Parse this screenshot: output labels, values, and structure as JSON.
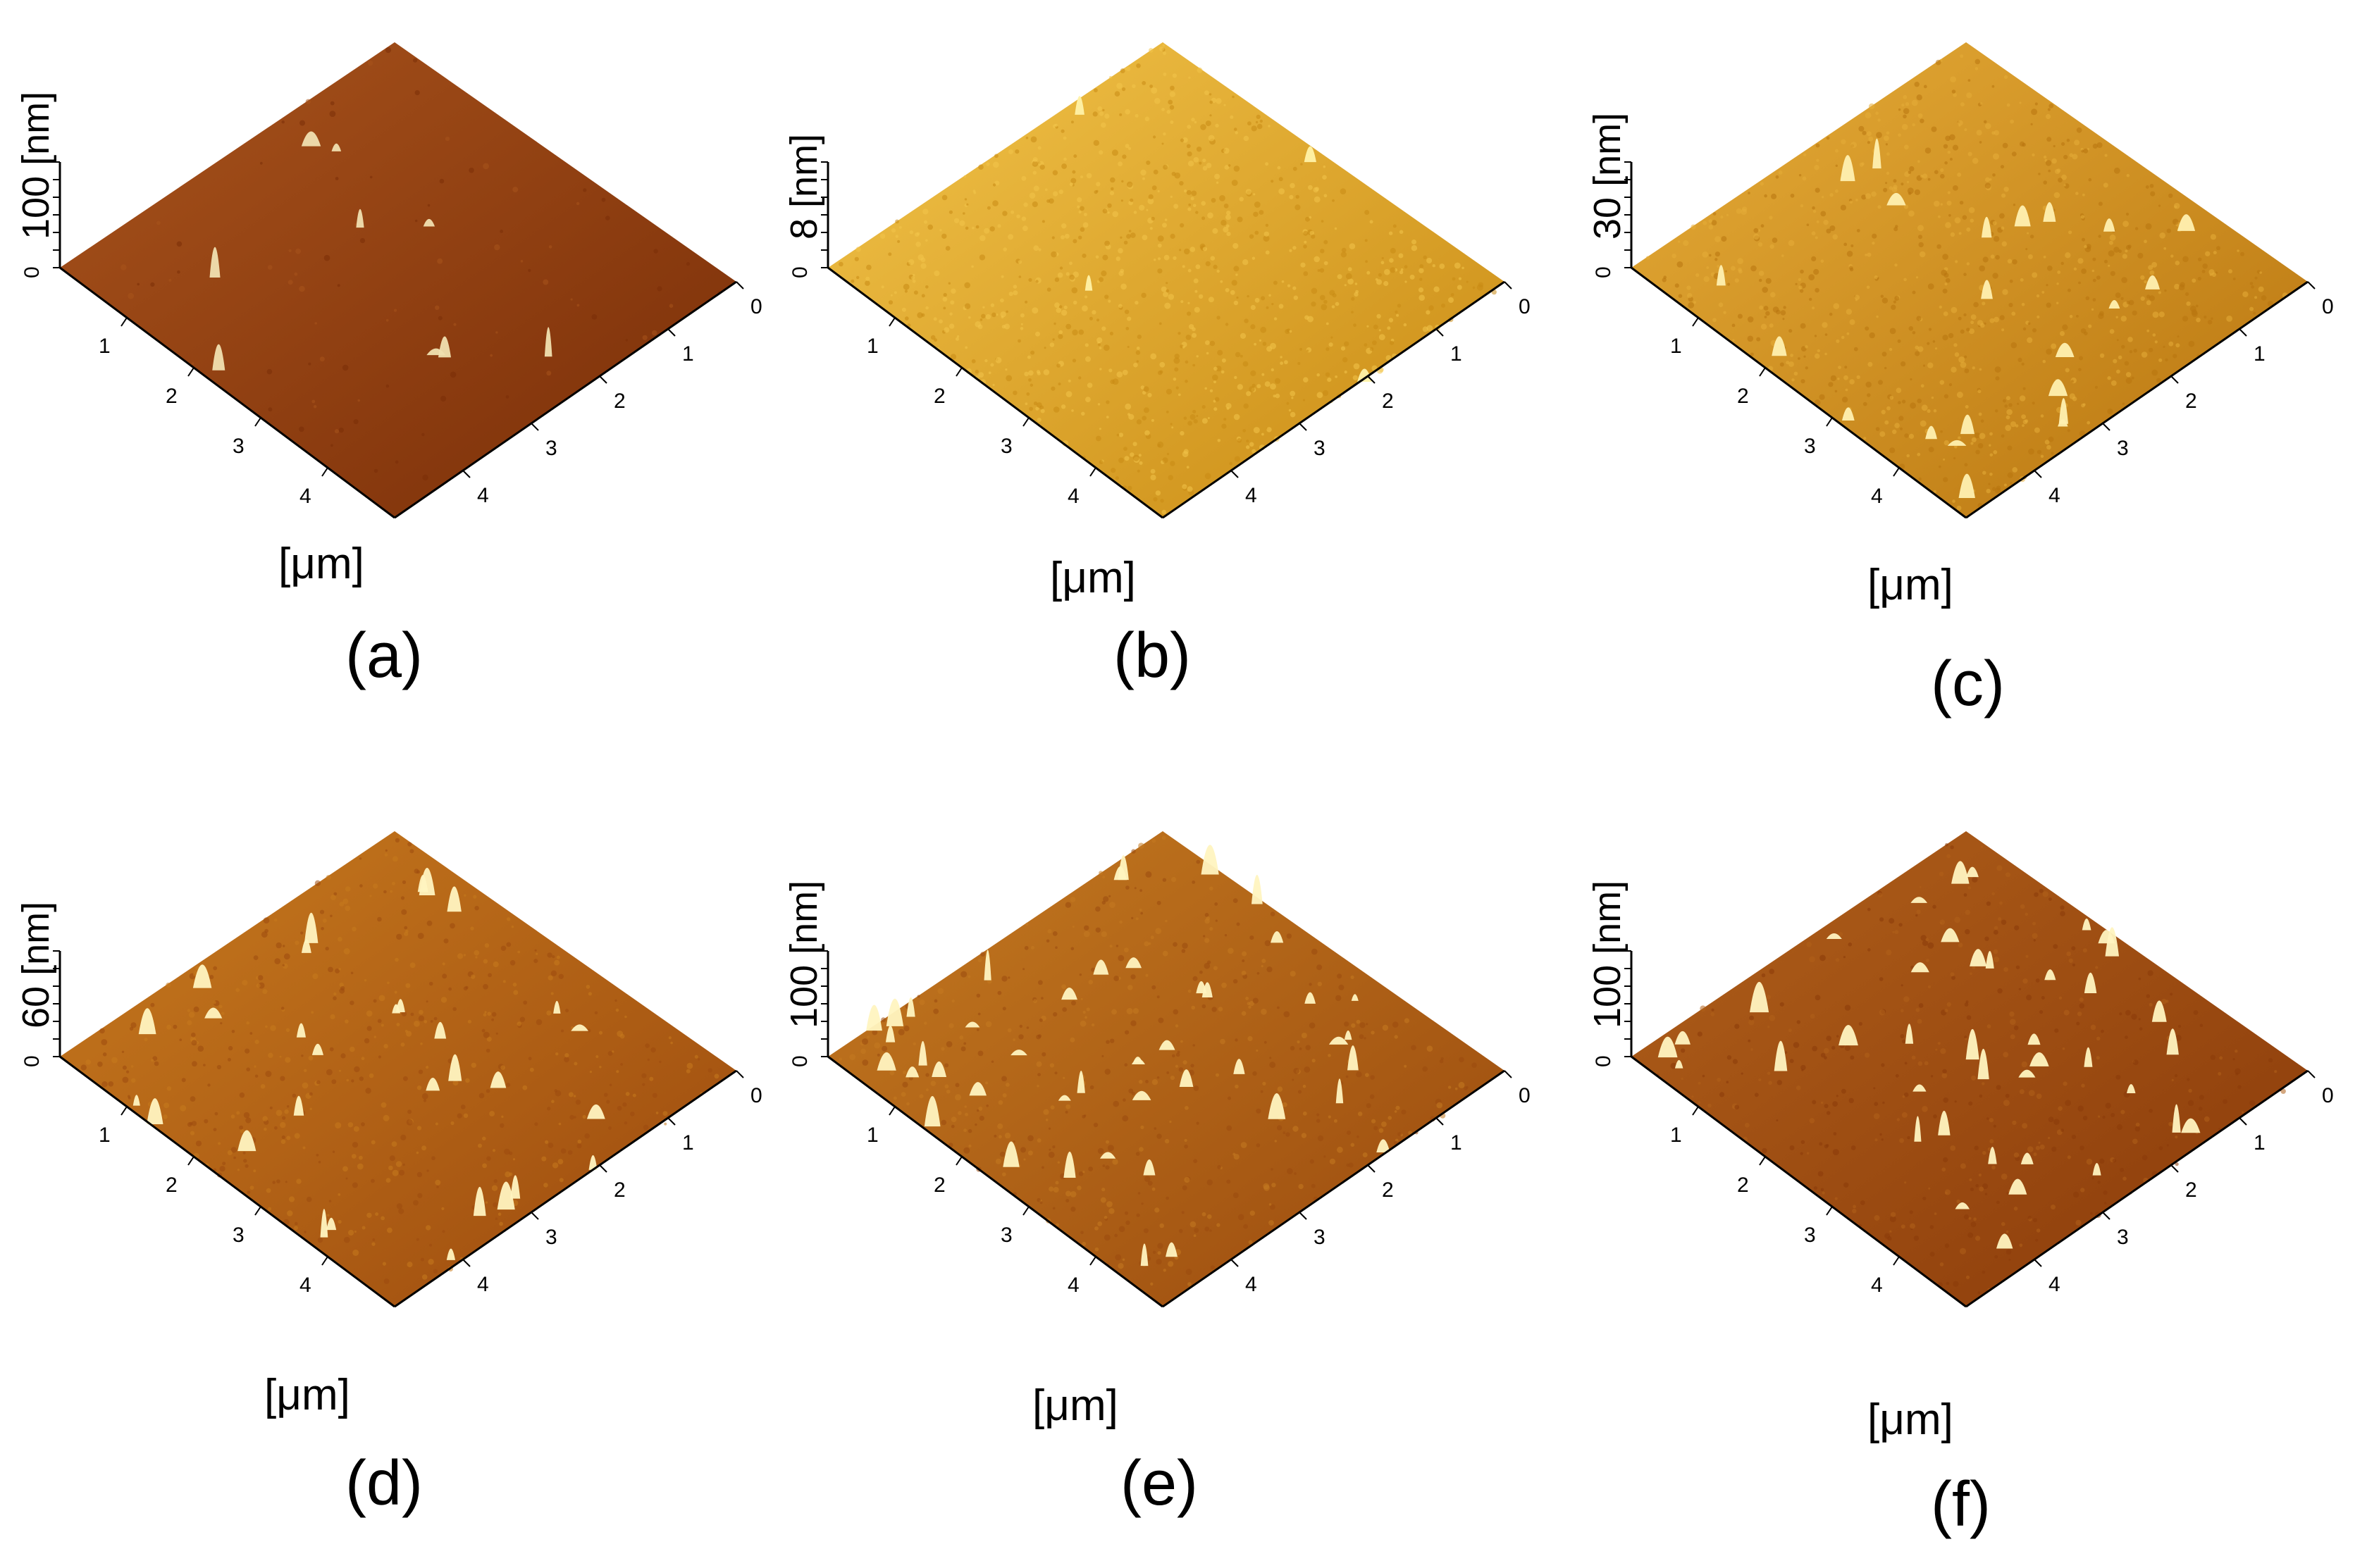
{
  "panels": [
    {
      "id": "a",
      "caption": "(a)",
      "z_top": "100 [nm]",
      "z_zero": "0",
      "unit": "[μm]",
      "ticks_left": [
        "1",
        "2",
        "3",
        "4"
      ],
      "ticks_right": [
        "0",
        "1",
        "2",
        "3",
        "4"
      ],
      "colors": {
        "surface": "#7a2e08",
        "light": "#a8531c",
        "edge": "#f0e0b0"
      },
      "peaks": 9,
      "grain": 0.1
    },
    {
      "id": "b",
      "caption": "(b)",
      "z_top": "8 [nm]",
      "z_zero": "0",
      "unit": "[μm]",
      "ticks_left": [
        "1",
        "2",
        "3",
        "4"
      ],
      "ticks_right": [
        "0",
        "1",
        "2",
        "3",
        "4"
      ],
      "colors": {
        "surface": "#c98a14",
        "light": "#f2c44a",
        "edge": "#fff2a8"
      },
      "peaks": 4,
      "grain": 1.0
    },
    {
      "id": "c",
      "caption": "(c)",
      "z_top": "30 [nm]",
      "z_zero": "0",
      "unit": "[μm]",
      "ticks_left": [
        "1",
        "2",
        "3",
        "4"
      ],
      "ticks_right": [
        "0",
        "1",
        "2",
        "3",
        "4"
      ],
      "colors": {
        "surface": "#b8740f",
        "light": "#e6ad38",
        "edge": "#fff0b0"
      },
      "peaks": 22,
      "grain": 0.9
    },
    {
      "id": "d",
      "caption": "(d)",
      "z_top": "60 [nm]",
      "z_zero": "0",
      "unit": "[μm]",
      "ticks_left": [
        "1",
        "2",
        "3",
        "4"
      ],
      "ticks_right": [
        "0",
        "1",
        "2",
        "3",
        "4"
      ],
      "colors": {
        "surface": "#9c4a0e",
        "light": "#c77a1e",
        "edge": "#fff4c0"
      },
      "peaks": 30,
      "grain": 0.6
    },
    {
      "id": "e",
      "caption": "(e)",
      "z_top": "100 [nm]",
      "z_zero": "0",
      "unit": "[μm]",
      "ticks_left": [
        "1",
        "2",
        "3",
        "4"
      ],
      "ticks_right": [
        "0",
        "1",
        "2",
        "3",
        "4"
      ],
      "colors": {
        "surface": "#9a4a0e",
        "light": "#c47a20",
        "edge": "#fff4c0"
      },
      "peaks": 45,
      "grain": 0.6
    },
    {
      "id": "f",
      "caption": "(f)",
      "z_top": "100 [nm]",
      "z_zero": "0",
      "unit": "[μm]",
      "ticks_left": [
        "1",
        "2",
        "3",
        "4"
      ],
      "ticks_right": [
        "0",
        "1",
        "2",
        "3",
        "4"
      ],
      "colors": {
        "surface": "#8a3a0a",
        "light": "#b0601a",
        "edge": "#fff4c0"
      },
      "peaks": 40,
      "grain": 0.5
    }
  ]
}
